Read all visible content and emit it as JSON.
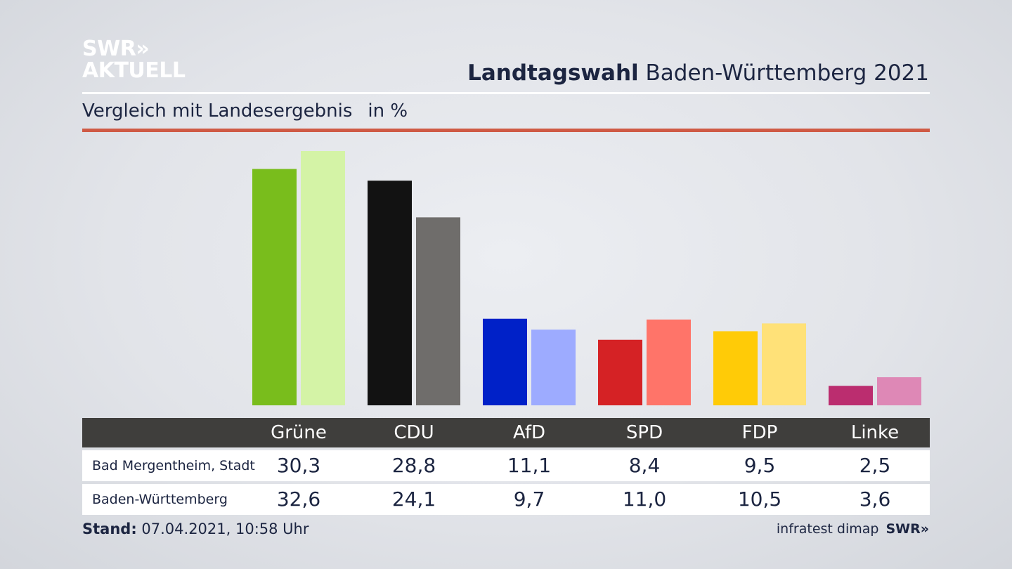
{
  "brand": {
    "line1": "SWR",
    "arrows": "»",
    "line2": "AKTUELL"
  },
  "header": {
    "title_bold": "Landtagswahl",
    "title_rest": " Baden-Württemberg 2021",
    "subtitle": "Vergleich mit Landesergebnis",
    "unit": "in %"
  },
  "colors": {
    "red_rule": "#cf5a45",
    "table_header_bg": "#3f3e3c"
  },
  "chart_data": {
    "type": "bar",
    "categories": [
      "Grüne",
      "CDU",
      "AfD",
      "SPD",
      "FDP",
      "Linke"
    ],
    "series": [
      {
        "name": "Bad Mergentheim, Stadt",
        "values": [
          30.3,
          28.8,
          11.1,
          8.4,
          9.5,
          2.5
        ],
        "colors": [
          "#79bd1c",
          "#121212",
          "#0021c8",
          "#d52225",
          "#ffcb07",
          "#bb2d6f"
        ]
      },
      {
        "name": "Baden-Württemberg",
        "values": [
          32.6,
          24.1,
          9.7,
          11.0,
          10.5,
          3.6
        ],
        "colors": [
          "#d4f3a6",
          "#6f6d6b",
          "#9dabff",
          "#ff7469",
          "#ffe178",
          "#de88b6"
        ]
      }
    ],
    "display_values": [
      [
        "30,3",
        "28,8",
        "11,1",
        "8,4",
        "9,5",
        "2,5"
      ],
      [
        "32,6",
        "24,1",
        "9,7",
        "11,0",
        "10,5",
        "3,6"
      ]
    ],
    "ylim": [
      0,
      32.6
    ],
    "grid": false,
    "legend": "table-below"
  },
  "footer": {
    "stand_label": "Stand:",
    "stand_value": " 07.04.2021, 10:58 Uhr",
    "source": "infratest dimap",
    "source_brand": "SWR»"
  }
}
